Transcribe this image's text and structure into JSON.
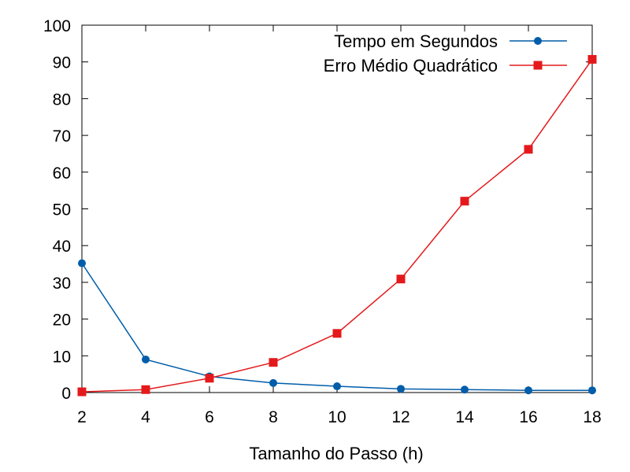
{
  "chart_data": {
    "type": "line",
    "title": "",
    "xlabel": "Tamanho do Passo (h)",
    "ylabel": "",
    "xlim": [
      2,
      18
    ],
    "ylim": [
      0,
      100
    ],
    "x_ticks": [
      2,
      4,
      6,
      8,
      10,
      12,
      14,
      16,
      18
    ],
    "y_ticks": [
      0,
      10,
      20,
      30,
      40,
      50,
      60,
      70,
      80,
      90,
      100
    ],
    "grid": false,
    "legend_position": "top-right",
    "x": [
      2,
      4,
      6,
      8,
      10,
      12,
      14,
      16,
      18
    ],
    "series": [
      {
        "name": "Tempo em Segundos",
        "color": "#005daa",
        "marker": "circle",
        "values": [
          35.2,
          9.0,
          4.4,
          2.6,
          1.7,
          1.0,
          0.8,
          0.6,
          0.6
        ]
      },
      {
        "name": "Erro Médio Quadrático",
        "color": "#e4191c",
        "marker": "square",
        "values": [
          0.2,
          0.8,
          3.9,
          8.2,
          16.1,
          30.9,
          52.1,
          66.2,
          90.7
        ]
      }
    ]
  }
}
